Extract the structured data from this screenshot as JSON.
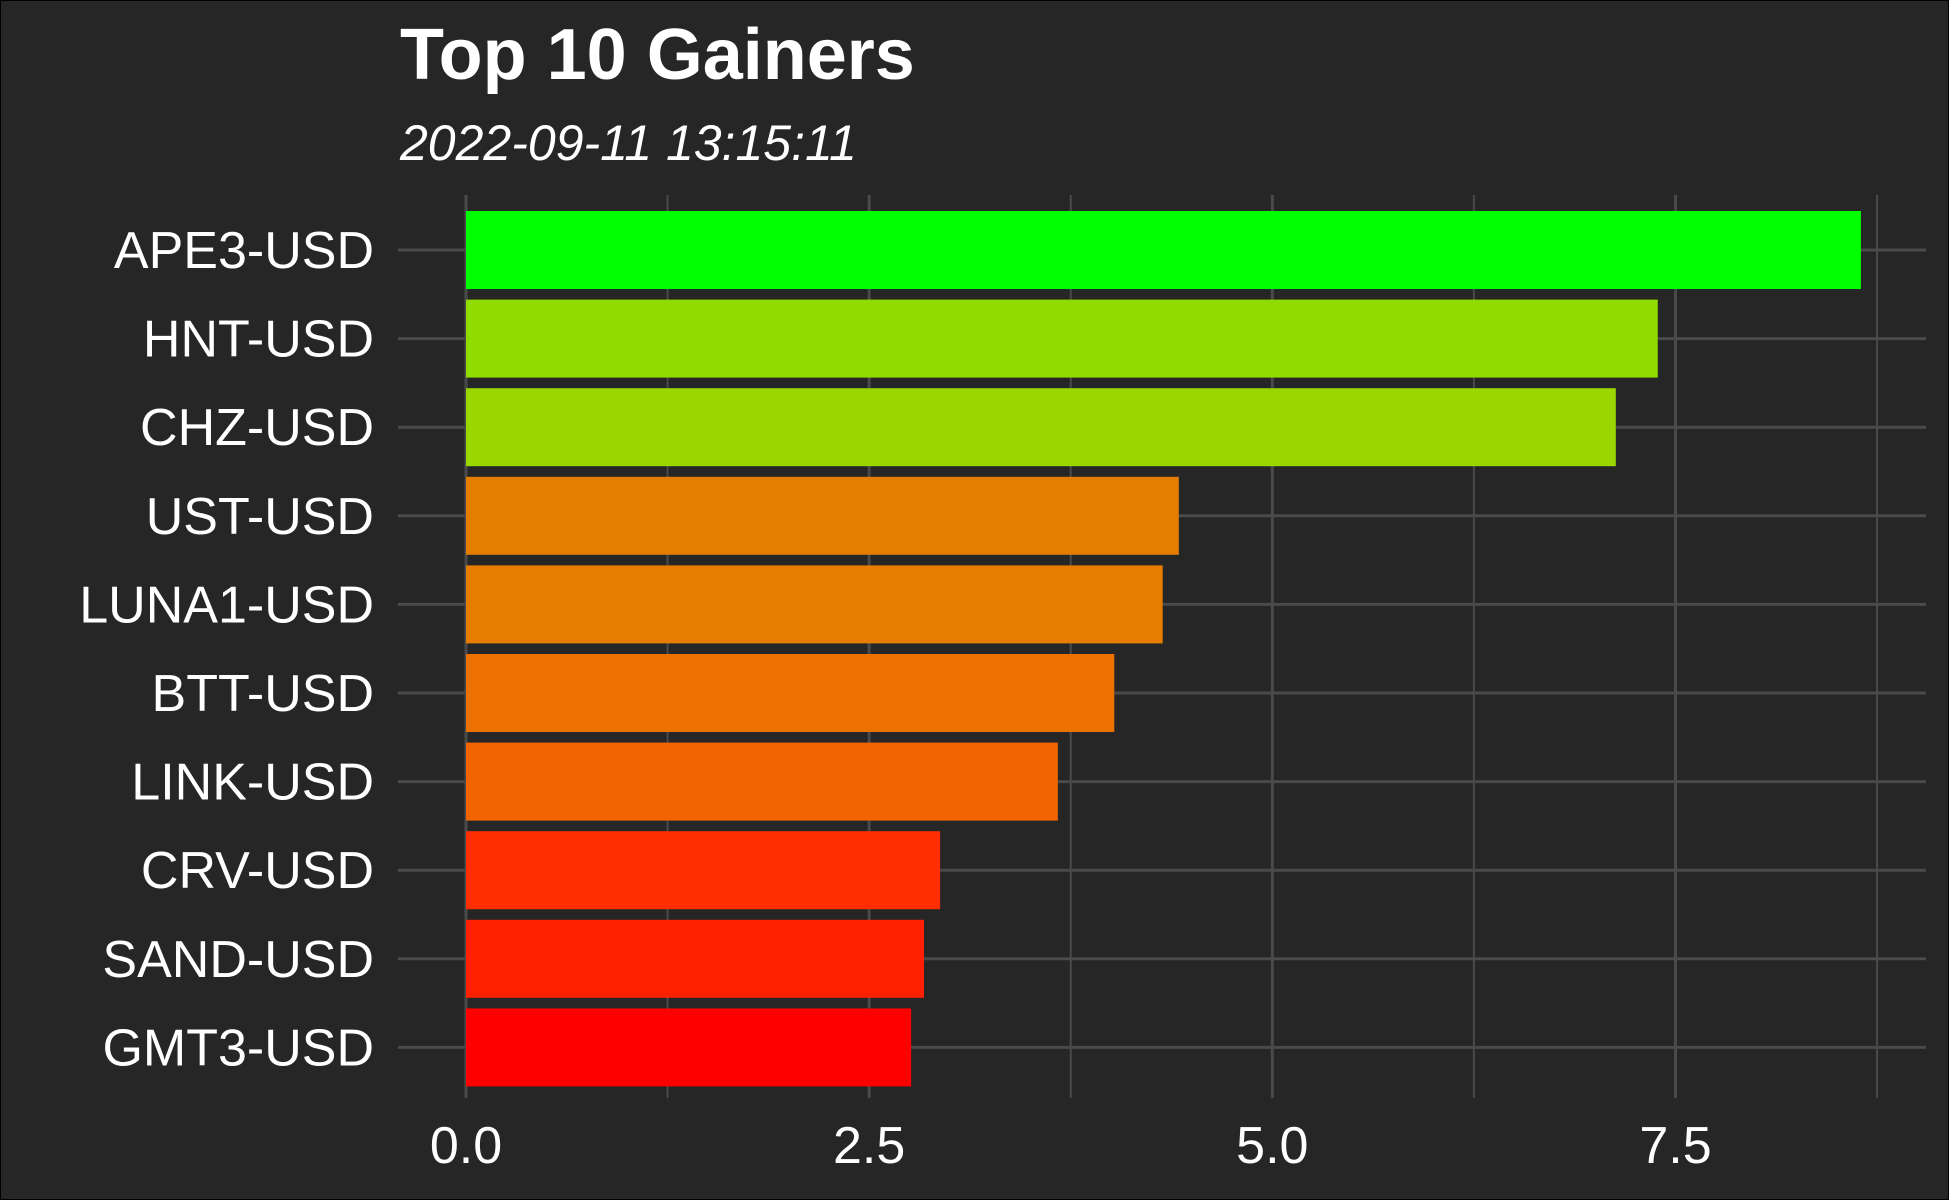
{
  "chart_data": {
    "type": "bar",
    "orientation": "horizontal",
    "title": "Top 10 Gainers",
    "subtitle": "2022-09-11 13:15:11",
    "xlabel": "",
    "ylabel": "",
    "categories": [
      "APE3-USD",
      "HNT-USD",
      "CHZ-USD",
      "UST-USD",
      "LUNA1-USD",
      "BTT-USD",
      "LINK-USD",
      "CRV-USD",
      "SAND-USD",
      "GMT3-USD"
    ],
    "values": [
      8.65,
      7.39,
      7.13,
      4.42,
      4.32,
      4.02,
      3.67,
      2.94,
      2.84,
      2.76
    ],
    "bar_colors": [
      "#00FF00",
      "#91DC00",
      "#9AD600",
      "#E57E00",
      "#E77D00",
      "#EC7100",
      "#F26400",
      "#FF2E00",
      "#FF2000",
      "#FF0000"
    ],
    "xlim": [
      0,
      8.8
    ],
    "xticks": [
      0.0,
      2.5,
      5.0,
      7.5
    ],
    "xtick_labels": [
      "0.0",
      "2.5",
      "5.0",
      "7.5"
    ],
    "grid": true,
    "legend": "none",
    "colors": {
      "background": "#262626",
      "grid": "#4a4a4a",
      "text": "#ffffff"
    }
  }
}
